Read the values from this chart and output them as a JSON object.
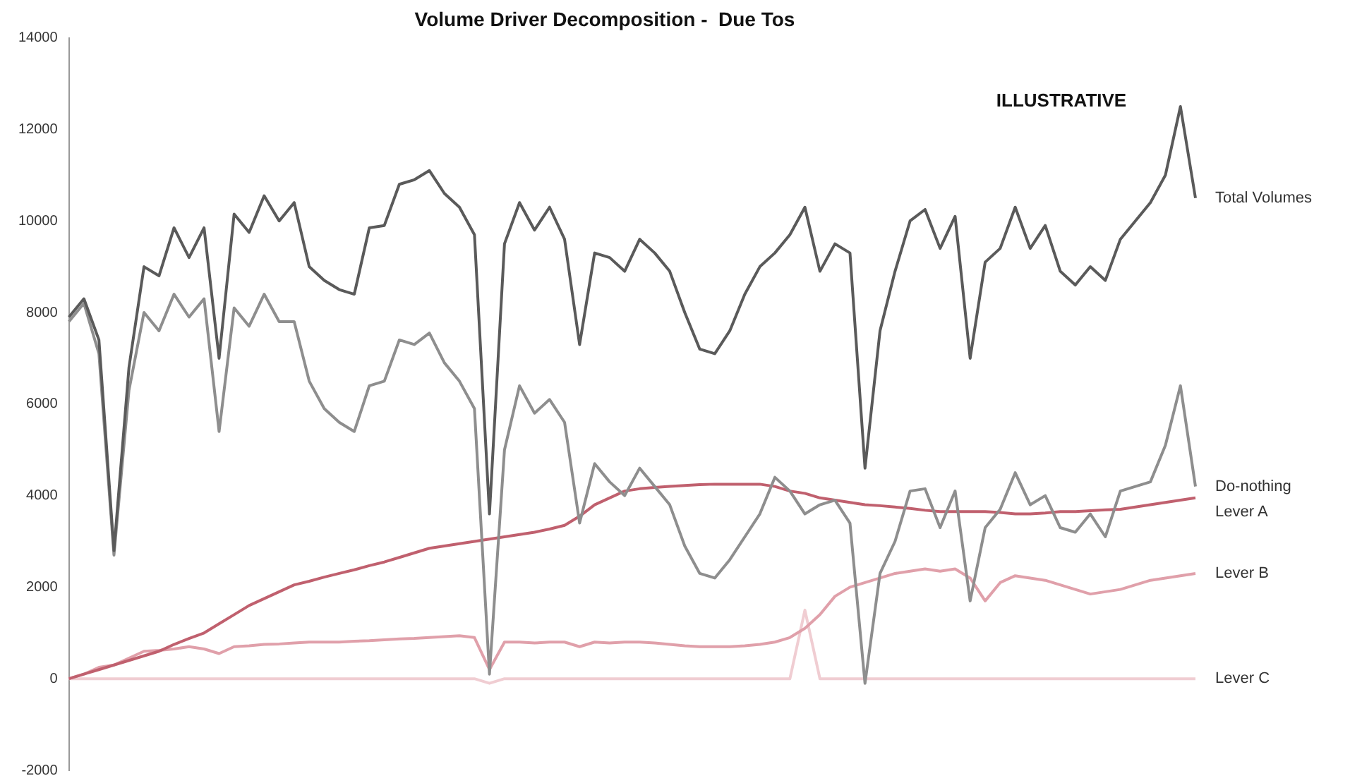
{
  "chart_data": {
    "type": "line",
    "title": "Volume Driver Decomposition -  Due Tos",
    "annotations": [
      "ILLUSTRATIVE"
    ],
    "categories": [
      null,
      null,
      null,
      null,
      null,
      null,
      null,
      null,
      null,
      null,
      null,
      null,
      null,
      null,
      null,
      null,
      null,
      null,
      null,
      null,
      null,
      null,
      null,
      null,
      null,
      null,
      null,
      null,
      null,
      null,
      null,
      null,
      null,
      null,
      null,
      null,
      null,
      null,
      null,
      null,
      null,
      null,
      null,
      null,
      null,
      null,
      null,
      null,
      null,
      null,
      null,
      null,
      null,
      null,
      null,
      null,
      null,
      null,
      null,
      null,
      null,
      null,
      null,
      null,
      null,
      null,
      null,
      null,
      null,
      null,
      null,
      null,
      null,
      null,
      null,
      null
    ],
    "series": [
      {
        "name": "Total Volumes",
        "color": "#5a5a5a",
        "values": [
          7900,
          8300,
          7400,
          2800,
          6800,
          9000,
          8800,
          9850,
          9200,
          9850,
          7000,
          10150,
          9750,
          10550,
          10000,
          10400,
          9000,
          8700,
          8500,
          8400,
          9850,
          9900,
          10800,
          10900,
          11100,
          10600,
          10300,
          9700,
          3600,
          9500,
          10400,
          9800,
          10300,
          9600,
          7300,
          9300,
          9200,
          8900,
          9600,
          9300,
          8900,
          8000,
          7200,
          7100,
          7600,
          8400,
          9000,
          9300,
          9700,
          10300,
          8900,
          9500,
          9300,
          4600,
          7600,
          8900,
          10000,
          10250,
          9400,
          10100,
          7000,
          9100,
          9400,
          10300,
          9400,
          9900,
          8900,
          8600,
          9000,
          8700,
          9600,
          10000,
          10400,
          11000,
          12500,
          10500
        ]
      },
      {
        "name": "Do-nothing",
        "color": "#8e8e8e",
        "values": [
          7800,
          8200,
          7100,
          2700,
          6300,
          8000,
          7600,
          8400,
          7900,
          8300,
          5400,
          8100,
          7700,
          8400,
          7800,
          7800,
          6500,
          5900,
          5600,
          5400,
          6400,
          6500,
          7400,
          7300,
          7550,
          6900,
          6500,
          5900,
          100,
          5000,
          6400,
          5800,
          6100,
          5600,
          3400,
          4700,
          4300,
          4000,
          4600,
          4200,
          3800,
          2900,
          2300,
          2200,
          2600,
          3100,
          3600,
          4400,
          4100,
          3600,
          3800,
          3900,
          3400,
          -100,
          2300,
          3000,
          4100,
          4150,
          3300,
          4100,
          1700,
          3300,
          3700,
          4500,
          3800,
          4000,
          3300,
          3200,
          3600,
          3100,
          4100,
          4200,
          4300,
          5100,
          6400,
          4200
        ]
      },
      {
        "name": "Lever A",
        "color": "#c0606e",
        "values": [
          0,
          100,
          200,
          300,
          400,
          500,
          600,
          750,
          880,
          1000,
          1200,
          1400,
          1600,
          1750,
          1900,
          2050,
          2130,
          2220,
          2300,
          2380,
          2470,
          2550,
          2650,
          2750,
          2850,
          2900,
          2950,
          3000,
          3050,
          3100,
          3150,
          3200,
          3270,
          3350,
          3550,
          3800,
          3950,
          4100,
          4150,
          4180,
          4200,
          4220,
          4240,
          4250,
          4250,
          4250,
          4250,
          4200,
          4100,
          4050,
          3950,
          3900,
          3850,
          3800,
          3780,
          3750,
          3720,
          3680,
          3650,
          3650,
          3650,
          3650,
          3630,
          3600,
          3600,
          3620,
          3650,
          3650,
          3670,
          3690,
          3700,
          3750,
          3800,
          3850,
          3900,
          3950
        ]
      },
      {
        "name": "Lever B",
        "color": "#e0a0aa",
        "values": [
          0,
          100,
          250,
          300,
          450,
          600,
          620,
          650,
          700,
          650,
          550,
          700,
          720,
          750,
          760,
          780,
          800,
          800,
          800,
          820,
          830,
          850,
          870,
          880,
          900,
          920,
          940,
          900,
          200,
          800,
          800,
          780,
          800,
          800,
          700,
          800,
          780,
          800,
          800,
          780,
          750,
          720,
          700,
          700,
          700,
          720,
          750,
          800,
          900,
          1100,
          1400,
          1800,
          2000,
          2100,
          2200,
          2300,
          2350,
          2400,
          2350,
          2400,
          2200,
          1700,
          2100,
          2250,
          2200,
          2150,
          2050,
          1950,
          1850,
          1900,
          1950,
          2050,
          2150,
          2200,
          2250,
          2300
        ]
      },
      {
        "name": "Lever C",
        "color": "#f0cdd2",
        "values": [
          0,
          0,
          0,
          0,
          0,
          0,
          0,
          0,
          0,
          0,
          0,
          0,
          0,
          0,
          0,
          0,
          0,
          0,
          0,
          0,
          0,
          0,
          0,
          0,
          0,
          0,
          0,
          0,
          -100,
          0,
          0,
          0,
          0,
          0,
          0,
          0,
          0,
          0,
          0,
          0,
          0,
          0,
          0,
          0,
          0,
          0,
          0,
          0,
          0,
          1500,
          0,
          0,
          0,
          0,
          0,
          0,
          0,
          0,
          0,
          0,
          0,
          0,
          0,
          0,
          0,
          0,
          0,
          0,
          0,
          0,
          0,
          0,
          0,
          0,
          0,
          0
        ]
      }
    ],
    "ylim": [
      -2000,
      14000
    ],
    "yticks": [
      -2000,
      0,
      2000,
      4000,
      6000,
      8000,
      10000,
      12000,
      14000
    ],
    "grid": false,
    "legend": false,
    "tick_labels": "y",
    "marker": "none",
    "line_style": "solid"
  }
}
